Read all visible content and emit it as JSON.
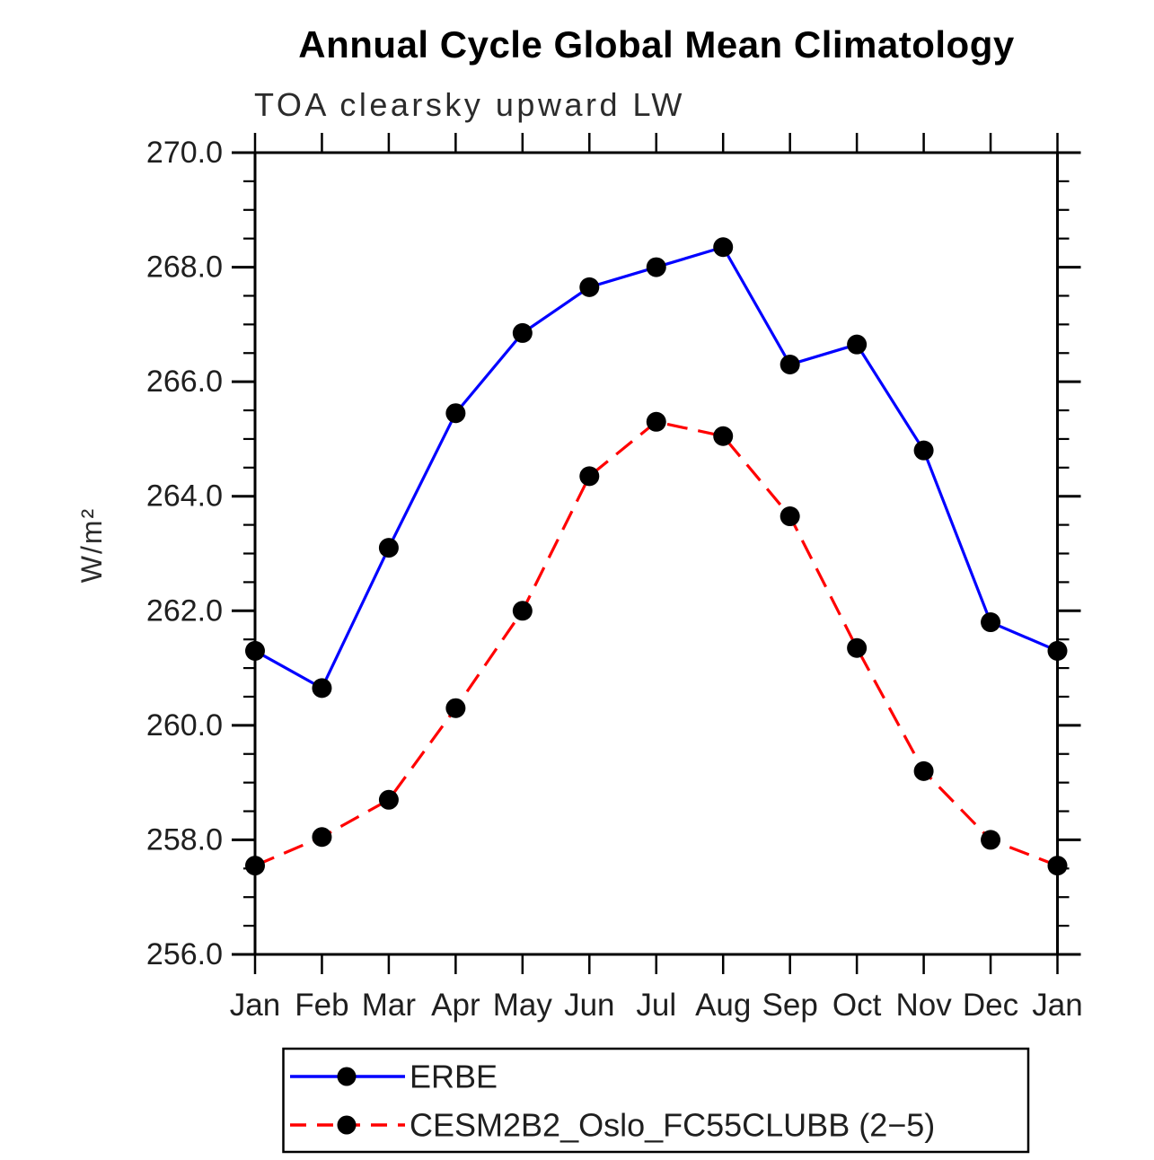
{
  "chart_data": {
    "type": "line",
    "title": "Annual Cycle Global Mean Climatology",
    "subtitle": "TOA clearsky upward LW",
    "ylabel": "W/m²",
    "xlabel": "",
    "ylim": [
      256.0,
      270.0
    ],
    "ytick_step": 2.0,
    "yminor_step": 0.5,
    "yticks": [
      "256.0",
      "258.0",
      "260.0",
      "262.0",
      "264.0",
      "266.0",
      "268.0",
      "270.0"
    ],
    "categories": [
      "Jan",
      "Feb",
      "Mar",
      "Apr",
      "May",
      "Jun",
      "Jul",
      "Aug",
      "Sep",
      "Oct",
      "Nov",
      "Dec",
      "Jan"
    ],
    "grid": false,
    "legend_position": "bottom",
    "marker_color": "#000000",
    "frame_color": "#000000",
    "series": [
      {
        "name": "ERBE",
        "color": "#0000ff",
        "style": "solid",
        "values": [
          261.3,
          260.65,
          263.1,
          265.45,
          266.85,
          267.65,
          268.0,
          268.35,
          266.3,
          266.65,
          264.8,
          261.8,
          261.3
        ]
      },
      {
        "name": "CESM2B2_Oslo_FC55CLUBB (2−5)",
        "color": "#ff0000",
        "style": "dashed",
        "values": [
          257.55,
          258.05,
          258.7,
          260.3,
          262.0,
          264.35,
          265.3,
          265.05,
          263.65,
          261.35,
          259.2,
          258.0,
          257.55
        ]
      }
    ]
  }
}
